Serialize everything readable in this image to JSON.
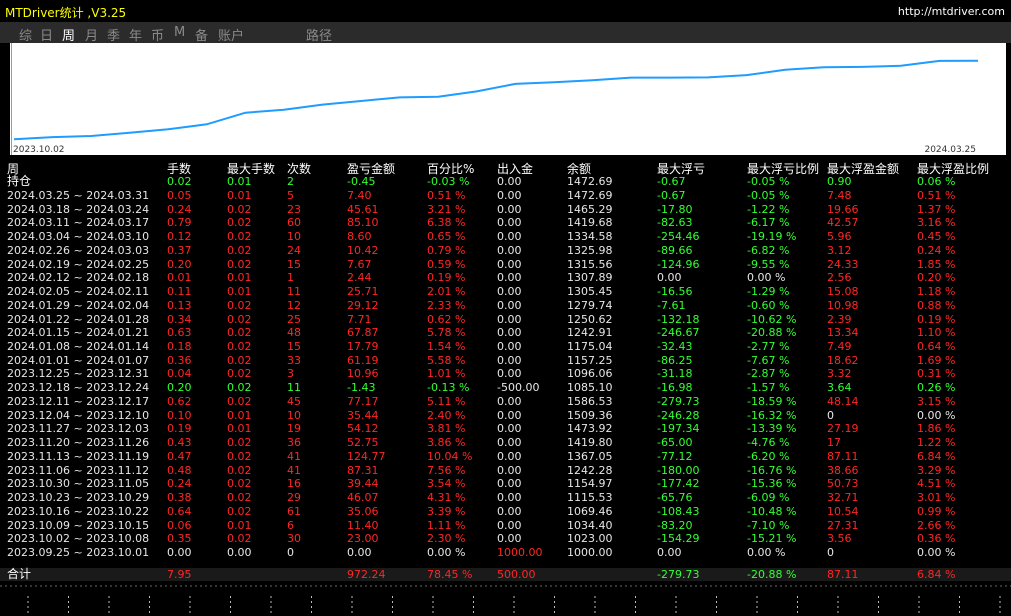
{
  "window": {
    "title": "MTDriver统计 ,V3.25",
    "url": "http://mtdriver.com"
  },
  "tabs": [
    {
      "label": "综",
      "active": false
    },
    {
      "label": "日",
      "active": false
    },
    {
      "label": "周",
      "active": true
    },
    {
      "label": "月",
      "active": false
    },
    {
      "label": "季",
      "active": false
    },
    {
      "label": "年",
      "active": false
    },
    {
      "label": "币",
      "active": false
    },
    {
      "label": "M",
      "active": false
    },
    {
      "label": "备",
      "active": false
    },
    {
      "label": "账户",
      "active": false
    },
    {
      "label": "路径",
      "active": false
    }
  ],
  "chart_data": {
    "type": "line",
    "x_start": "2023.10.02",
    "x_end": "2024.03.25",
    "color": "#1e9cff",
    "values": [
      0.0,
      23.0,
      34.4,
      69.44,
      104.96,
      158.3,
      281.57,
      313.17,
      367.29,
      405.25,
      443.87,
      450.91,
      507.44,
      587.55,
      605.04,
      626.08,
      653.95,
      653.95,
      655.97,
      681.07,
      737.2,
      762.88,
      767.75,
      779.42,
      831.05,
      833.87
    ],
    "ylim": [
      -40,
      1000
    ]
  },
  "columns": {
    "period": "周",
    "lots": "手数",
    "max_lots": "最大手数",
    "count": "次数",
    "pnl": "盈亏金额",
    "pct": "百分比%",
    "flow": "出入金",
    "balance": "余额",
    "max_float_loss": "最大浮亏",
    "max_float_loss_pct": "最大浮亏比例",
    "max_float_profit": "最大浮盈金额",
    "max_float_profit_pct": "最大浮盈比例"
  },
  "position_row": {
    "label": "持仓",
    "lots": "0.02",
    "max_lots": "0.01",
    "count": "2",
    "pnl": "-0.45",
    "pct": "-0.03 %",
    "flow": "0.00",
    "balance": "1472.69",
    "mfl": "-0.67",
    "mflp": "-0.05 %",
    "mfp": "0.90",
    "mfpp": "0.06 %",
    "tone": "green"
  },
  "rows": [
    {
      "period": "2024.03.25 ~ 2024.03.31",
      "lots": "0.05",
      "max_lots": "0.01",
      "count": "5",
      "pnl": "7.40",
      "pct": "0.51 %",
      "flow": "0.00",
      "balance": "1472.69",
      "mfl": "-0.67",
      "mflp": "-0.05 %",
      "mfp": "7.48",
      "mfpp": "0.51 %",
      "tone": "red"
    },
    {
      "period": "2024.03.18 ~ 2024.03.24",
      "lots": "0.24",
      "max_lots": "0.02",
      "count": "23",
      "pnl": "45.61",
      "pct": "3.21 %",
      "flow": "0.00",
      "balance": "1465.29",
      "mfl": "-17.80",
      "mflp": "-1.22 %",
      "mfp": "19.66",
      "mfpp": "1.37 %",
      "tone": "red"
    },
    {
      "period": "2024.03.11 ~ 2024.03.17",
      "lots": "0.79",
      "max_lots": "0.02",
      "count": "60",
      "pnl": "85.10",
      "pct": "6.38 %",
      "flow": "0.00",
      "balance": "1419.68",
      "mfl": "-82.63",
      "mflp": "-6.17 %",
      "mfp": "42.57",
      "mfpp": "3.16 %",
      "tone": "red"
    },
    {
      "period": "2024.03.04 ~ 2024.03.10",
      "lots": "0.12",
      "max_lots": "0.02",
      "count": "10",
      "pnl": "8.60",
      "pct": "0.65 %",
      "flow": "0.00",
      "balance": "1334.58",
      "mfl": "-254.46",
      "mflp": "-19.19 %",
      "mfp": "5.96",
      "mfpp": "0.45 %",
      "tone": "red"
    },
    {
      "period": "2024.02.26 ~ 2024.03.03",
      "lots": "0.37",
      "max_lots": "0.02",
      "count": "24",
      "pnl": "10.42",
      "pct": "0.79 %",
      "flow": "0.00",
      "balance": "1325.98",
      "mfl": "-89.66",
      "mflp": "-6.82 %",
      "mfp": "3.12",
      "mfpp": "0.24 %",
      "tone": "red"
    },
    {
      "period": "2024.02.19 ~ 2024.02.25",
      "lots": "0.20",
      "max_lots": "0.02",
      "count": "15",
      "pnl": "7.67",
      "pct": "0.59 %",
      "flow": "0.00",
      "balance": "1315.56",
      "mfl": "-124.96",
      "mflp": "-9.55 %",
      "mfp": "24.33",
      "mfpp": "1.85 %",
      "tone": "red"
    },
    {
      "period": "2024.02.12 ~ 2024.02.18",
      "lots": "0.01",
      "max_lots": "0.01",
      "count": "1",
      "pnl": "2.44",
      "pct": "0.19 %",
      "flow": "0.00",
      "balance": "1307.89",
      "mfl": "0.00",
      "mflp": "0.00 %",
      "mfp": "2.56",
      "mfpp": "0.20 %",
      "tone": "red"
    },
    {
      "period": "2024.02.05 ~ 2024.02.11",
      "lots": "0.11",
      "max_lots": "0.01",
      "count": "11",
      "pnl": "25.71",
      "pct": "2.01 %",
      "flow": "0.00",
      "balance": "1305.45",
      "mfl": "-16.56",
      "mflp": "-1.29 %",
      "mfp": "15.08",
      "mfpp": "1.18 %",
      "tone": "red"
    },
    {
      "period": "2024.01.29 ~ 2024.02.04",
      "lots": "0.13",
      "max_lots": "0.02",
      "count": "12",
      "pnl": "29.12",
      "pct": "2.33 %",
      "flow": "0.00",
      "balance": "1279.74",
      "mfl": "-7.61",
      "mflp": "-0.60 %",
      "mfp": "10.98",
      "mfpp": "0.88 %",
      "tone": "red"
    },
    {
      "period": "2024.01.22 ~ 2024.01.28",
      "lots": "0.34",
      "max_lots": "0.02",
      "count": "25",
      "pnl": "7.71",
      "pct": "0.62 %",
      "flow": "0.00",
      "balance": "1250.62",
      "mfl": "-132.18",
      "mflp": "-10.62 %",
      "mfp": "2.39",
      "mfpp": "0.19 %",
      "tone": "red"
    },
    {
      "period": "2024.01.15 ~ 2024.01.21",
      "lots": "0.63",
      "max_lots": "0.02",
      "count": "48",
      "pnl": "67.87",
      "pct": "5.78 %",
      "flow": "0.00",
      "balance": "1242.91",
      "mfl": "-246.67",
      "mflp": "-20.88 %",
      "mfp": "13.34",
      "mfpp": "1.10 %",
      "tone": "red"
    },
    {
      "period": "2024.01.08 ~ 2024.01.14",
      "lots": "0.18",
      "max_lots": "0.02",
      "count": "15",
      "pnl": "17.79",
      "pct": "1.54 %",
      "flow": "0.00",
      "balance": "1175.04",
      "mfl": "-32.43",
      "mflp": "-2.77 %",
      "mfp": "7.49",
      "mfpp": "0.64 %",
      "tone": "red"
    },
    {
      "period": "2024.01.01 ~ 2024.01.07",
      "lots": "0.36",
      "max_lots": "0.02",
      "count": "33",
      "pnl": "61.19",
      "pct": "5.58 %",
      "flow": "0.00",
      "balance": "1157.25",
      "mfl": "-86.25",
      "mflp": "-7.67 %",
      "mfp": "18.62",
      "mfpp": "1.69 %",
      "tone": "red"
    },
    {
      "period": "2023.12.25 ~ 2023.12.31",
      "lots": "0.04",
      "max_lots": "0.02",
      "count": "3",
      "pnl": "10.96",
      "pct": "1.01 %",
      "flow": "0.00",
      "balance": "1096.06",
      "mfl": "-31.18",
      "mflp": "-2.87 %",
      "mfp": "3.32",
      "mfpp": "0.31 %",
      "tone": "red"
    },
    {
      "period": "2023.12.18 ~ 2023.12.24",
      "lots": "0.20",
      "max_lots": "0.02",
      "count": "11",
      "pnl": "-1.43",
      "pct": "-0.13 %",
      "flow": "-500.00",
      "balance": "1085.10",
      "mfl": "-16.98",
      "mflp": "-1.57 %",
      "mfp": "3.64",
      "mfpp": "0.26 %",
      "tone": "green"
    },
    {
      "period": "2023.12.11 ~ 2023.12.17",
      "lots": "0.62",
      "max_lots": "0.02",
      "count": "45",
      "pnl": "77.17",
      "pct": "5.11 %",
      "flow": "0.00",
      "balance": "1586.53",
      "mfl": "-279.73",
      "mflp": "-18.59 %",
      "mfp": "48.14",
      "mfpp": "3.15 %",
      "tone": "red"
    },
    {
      "period": "2023.12.04 ~ 2023.12.10",
      "lots": "0.10",
      "max_lots": "0.01",
      "count": "10",
      "pnl": "35.44",
      "pct": "2.40 %",
      "flow": "0.00",
      "balance": "1509.36",
      "mfl": "-246.28",
      "mflp": "-16.32 %",
      "mfp": "0",
      "mfpp": "0.00 %",
      "tone": "red",
      "mfp_tone": "white"
    },
    {
      "period": "2023.11.27 ~ 2023.12.03",
      "lots": "0.19",
      "max_lots": "0.01",
      "count": "19",
      "pnl": "54.12",
      "pct": "3.81 %",
      "flow": "0.00",
      "balance": "1473.92",
      "mfl": "-197.34",
      "mflp": "-13.39 %",
      "mfp": "27.19",
      "mfpp": "1.86 %",
      "tone": "red"
    },
    {
      "period": "2023.11.20 ~ 2023.11.26",
      "lots": "0.43",
      "max_lots": "0.02",
      "count": "36",
      "pnl": "52.75",
      "pct": "3.86 %",
      "flow": "0.00",
      "balance": "1419.80",
      "mfl": "-65.00",
      "mflp": "-4.76 %",
      "mfp": "17",
      "mfpp": "1.22 %",
      "tone": "red"
    },
    {
      "period": "2023.11.13 ~ 2023.11.19",
      "lots": "0.47",
      "max_lots": "0.02",
      "count": "41",
      "pnl": "124.77",
      "pct": "10.04 %",
      "flow": "0.00",
      "balance": "1367.05",
      "mfl": "-77.12",
      "mflp": "-6.20 %",
      "mfp": "87.11",
      "mfpp": "6.84 %",
      "tone": "red"
    },
    {
      "period": "2023.11.06 ~ 2023.11.12",
      "lots": "0.48",
      "max_lots": "0.02",
      "count": "41",
      "pnl": "87.31",
      "pct": "7.56 %",
      "flow": "0.00",
      "balance": "1242.28",
      "mfl": "-180.00",
      "mflp": "-16.76 %",
      "mfp": "38.66",
      "mfpp": "3.29 %",
      "tone": "red"
    },
    {
      "period": "2023.10.30 ~ 2023.11.05",
      "lots": "0.24",
      "max_lots": "0.02",
      "count": "16",
      "pnl": "39.44",
      "pct": "3.54 %",
      "flow": "0.00",
      "balance": "1154.97",
      "mfl": "-177.42",
      "mflp": "-15.36 %",
      "mfp": "50.73",
      "mfpp": "4.51 %",
      "tone": "red"
    },
    {
      "period": "2023.10.23 ~ 2023.10.29",
      "lots": "0.38",
      "max_lots": "0.02",
      "count": "29",
      "pnl": "46.07",
      "pct": "4.31 %",
      "flow": "0.00",
      "balance": "1115.53",
      "mfl": "-65.76",
      "mflp": "-6.09 %",
      "mfp": "32.71",
      "mfpp": "3.01 %",
      "tone": "red"
    },
    {
      "period": "2023.10.16 ~ 2023.10.22",
      "lots": "0.64",
      "max_lots": "0.02",
      "count": "61",
      "pnl": "35.06",
      "pct": "3.39 %",
      "flow": "0.00",
      "balance": "1069.46",
      "mfl": "-108.43",
      "mflp": "-10.48 %",
      "mfp": "10.54",
      "mfpp": "0.99 %",
      "tone": "red"
    },
    {
      "period": "2023.10.09 ~ 2023.10.15",
      "lots": "0.06",
      "max_lots": "0.01",
      "count": "6",
      "pnl": "11.40",
      "pct": "1.11 %",
      "flow": "0.00",
      "balance": "1034.40",
      "mfl": "-83.20",
      "mflp": "-7.10 %",
      "mfp": "27.31",
      "mfpp": "2.66 %",
      "tone": "red"
    },
    {
      "period": "2023.10.02 ~ 2023.10.08",
      "lots": "0.35",
      "max_lots": "0.02",
      "count": "30",
      "pnl": "23.00",
      "pct": "2.30 %",
      "flow": "0.00",
      "balance": "1023.00",
      "mfl": "-154.29",
      "mflp": "-15.21 %",
      "mfp": "3.56",
      "mfpp": "0.36 %",
      "tone": "red"
    },
    {
      "period": "2023.09.25 ~ 2023.10.01",
      "lots": "0.00",
      "max_lots": "0.00",
      "count": "0",
      "pnl": "0.00",
      "pct": "0.00 %",
      "flow": "1000.00",
      "balance": "1000.00",
      "mfl": "0.00",
      "mflp": "0.00 %",
      "mfp": "0",
      "mfpp": "0.00 %",
      "tone": "white",
      "flow_tone": "red"
    }
  ],
  "total": {
    "label": "合计",
    "lots": "7.95",
    "max_lots": "",
    "count": "",
    "pnl": "972.24",
    "pct": "78.45 %",
    "flow": "500.00",
    "balance": "",
    "mfl": "-279.73",
    "mflp": "-20.88 %",
    "mfp": "87.11",
    "mfpp": "6.84 %"
  },
  "colors": {
    "loss": "#ff2626",
    "profit": "#33ff33",
    "neutral": "#e6e6e6",
    "line": "#1e9cff"
  }
}
